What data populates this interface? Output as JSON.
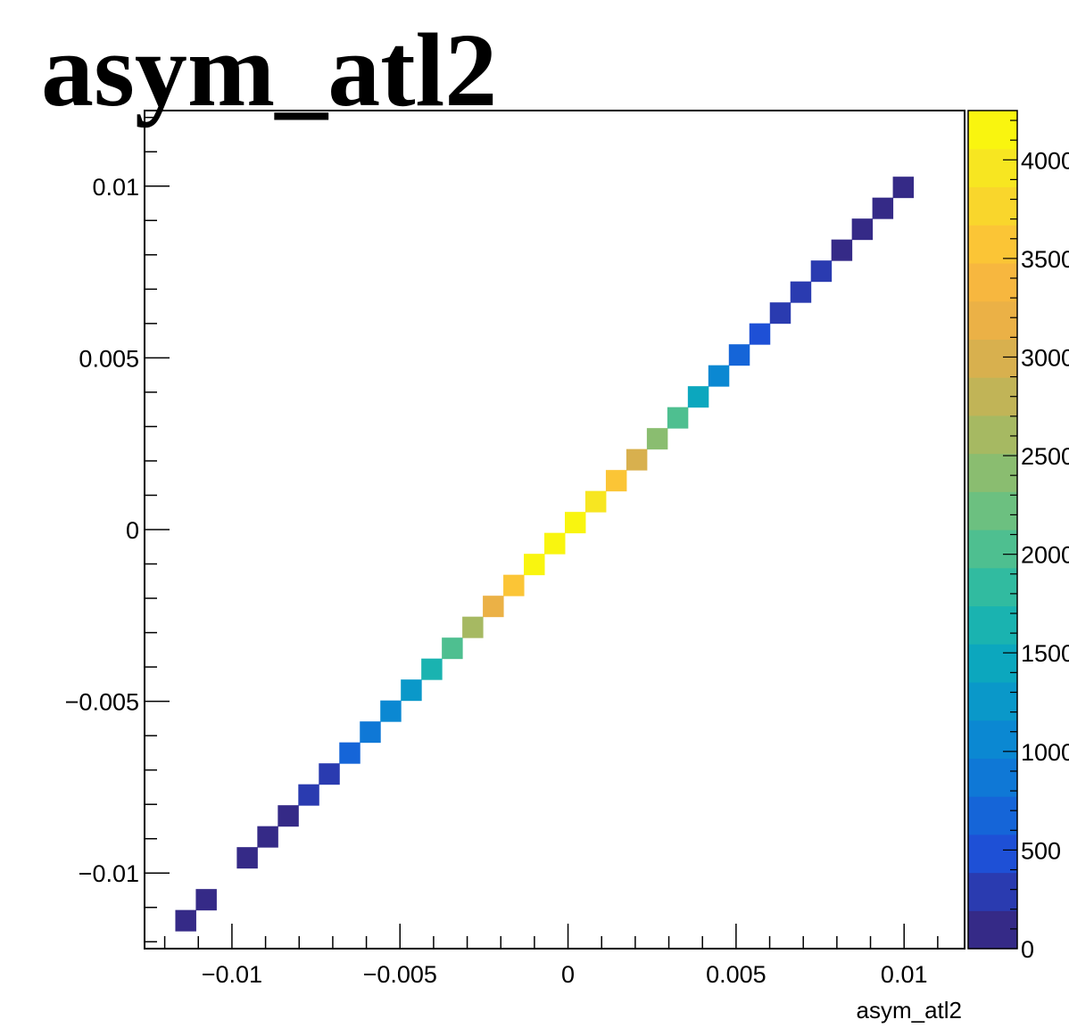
{
  "chart_data": {
    "type": "heatmap",
    "title": "asym_atl2",
    "xlabel": "asym_atl2",
    "ylabel": "",
    "xlim": [
      -0.0126,
      0.0118
    ],
    "ylim": [
      -0.0122,
      0.0122
    ],
    "x_ticks": [
      {
        "value": -0.01,
        "label": "−0.01"
      },
      {
        "value": -0.005,
        "label": "−0.005"
      },
      {
        "value": 0,
        "label": "0"
      },
      {
        "value": 0.005,
        "label": "0.005"
      },
      {
        "value": 0.01,
        "label": "0.01"
      }
    ],
    "y_ticks": [
      {
        "value": 0.01,
        "label": "0.01"
      },
      {
        "value": 0.005,
        "label": "0.005"
      },
      {
        "value": 0,
        "label": "0"
      },
      {
        "value": -0.005,
        "label": "−0.005"
      },
      {
        "value": -0.01,
        "label": "−0.01"
      }
    ],
    "colorbar": {
      "range": [
        0,
        4250
      ],
      "tick_values": [
        0,
        500,
        1000,
        1500,
        2000,
        2500,
        3000,
        3500,
        4000
      ],
      "tick_labels": [
        "0",
        "500",
        "1000",
        "1500",
        "2000",
        "2500",
        "3000",
        "3500",
        "4000"
      ],
      "palette": [
        "#352a87",
        "#2a3bb0",
        "#1e50d6",
        "#1565d8",
        "#0f78d6",
        "#0b88d2",
        "#0a98c9",
        "#0ca7be",
        "#1ab3b0",
        "#31bba0",
        "#4ebf90",
        "#6cc080",
        "#8abd70",
        "#a6b962",
        "#c1b457",
        "#d8b04e",
        "#ebb146",
        "#f7b73f",
        "#fbc536",
        "#f9d62c",
        "#f7e621",
        "#f9f50f"
      ]
    },
    "bin_width": 0.00061,
    "bins": [
      {
        "x": -0.01138,
        "y": -0.01138,
        "value": 100
      },
      {
        "x": -0.01077,
        "y": -0.01077,
        "value": 120
      },
      {
        "x": -0.00955,
        "y": -0.00955,
        "value": 140
      },
      {
        "x": -0.00894,
        "y": -0.00894,
        "value": 160
      },
      {
        "x": -0.00833,
        "y": -0.00833,
        "value": 190
      },
      {
        "x": -0.00772,
        "y": -0.00772,
        "value": 240
      },
      {
        "x": -0.00711,
        "y": -0.00711,
        "value": 320
      },
      {
        "x": -0.0065,
        "y": -0.0065,
        "value": 620
      },
      {
        "x": -0.00589,
        "y": -0.00589,
        "value": 820
      },
      {
        "x": -0.00528,
        "y": -0.00528,
        "value": 1050
      },
      {
        "x": -0.00467,
        "y": -0.00467,
        "value": 1300
      },
      {
        "x": -0.00406,
        "y": -0.00406,
        "value": 1550
      },
      {
        "x": -0.00345,
        "y": -0.00345,
        "value": 2000
      },
      {
        "x": -0.00284,
        "y": -0.00284,
        "value": 2600
      },
      {
        "x": -0.00223,
        "y": -0.00223,
        "value": 3150
      },
      {
        "x": -0.00162,
        "y": -0.00162,
        "value": 3650
      },
      {
        "x": -0.00101,
        "y": -0.00101,
        "value": 4150
      },
      {
        "x": -0.0004,
        "y": -0.0004,
        "value": 4200
      },
      {
        "x": 0.00021,
        "y": 0.00021,
        "value": 4150
      },
      {
        "x": 0.00082,
        "y": 0.00082,
        "value": 4000
      },
      {
        "x": 0.00143,
        "y": 0.00143,
        "value": 3550
      },
      {
        "x": 0.00204,
        "y": 0.00204,
        "value": 2900
      },
      {
        "x": 0.00265,
        "y": 0.00265,
        "value": 2450
      },
      {
        "x": 0.00326,
        "y": 0.00326,
        "value": 2050
      },
      {
        "x": 0.00387,
        "y": 0.00387,
        "value": 1500
      },
      {
        "x": 0.00448,
        "y": 0.00448,
        "value": 1100
      },
      {
        "x": 0.00509,
        "y": 0.00509,
        "value": 750
      },
      {
        "x": 0.0057,
        "y": 0.0057,
        "value": 550
      },
      {
        "x": 0.00631,
        "y": 0.00631,
        "value": 320
      },
      {
        "x": 0.00692,
        "y": 0.00692,
        "value": 260
      },
      {
        "x": 0.00753,
        "y": 0.00753,
        "value": 220
      },
      {
        "x": 0.00814,
        "y": 0.00814,
        "value": 180
      },
      {
        "x": 0.00875,
        "y": 0.00875,
        "value": 150
      },
      {
        "x": 0.00936,
        "y": 0.00936,
        "value": 120
      },
      {
        "x": 0.00997,
        "y": 0.00997,
        "value": 100
      }
    ]
  }
}
